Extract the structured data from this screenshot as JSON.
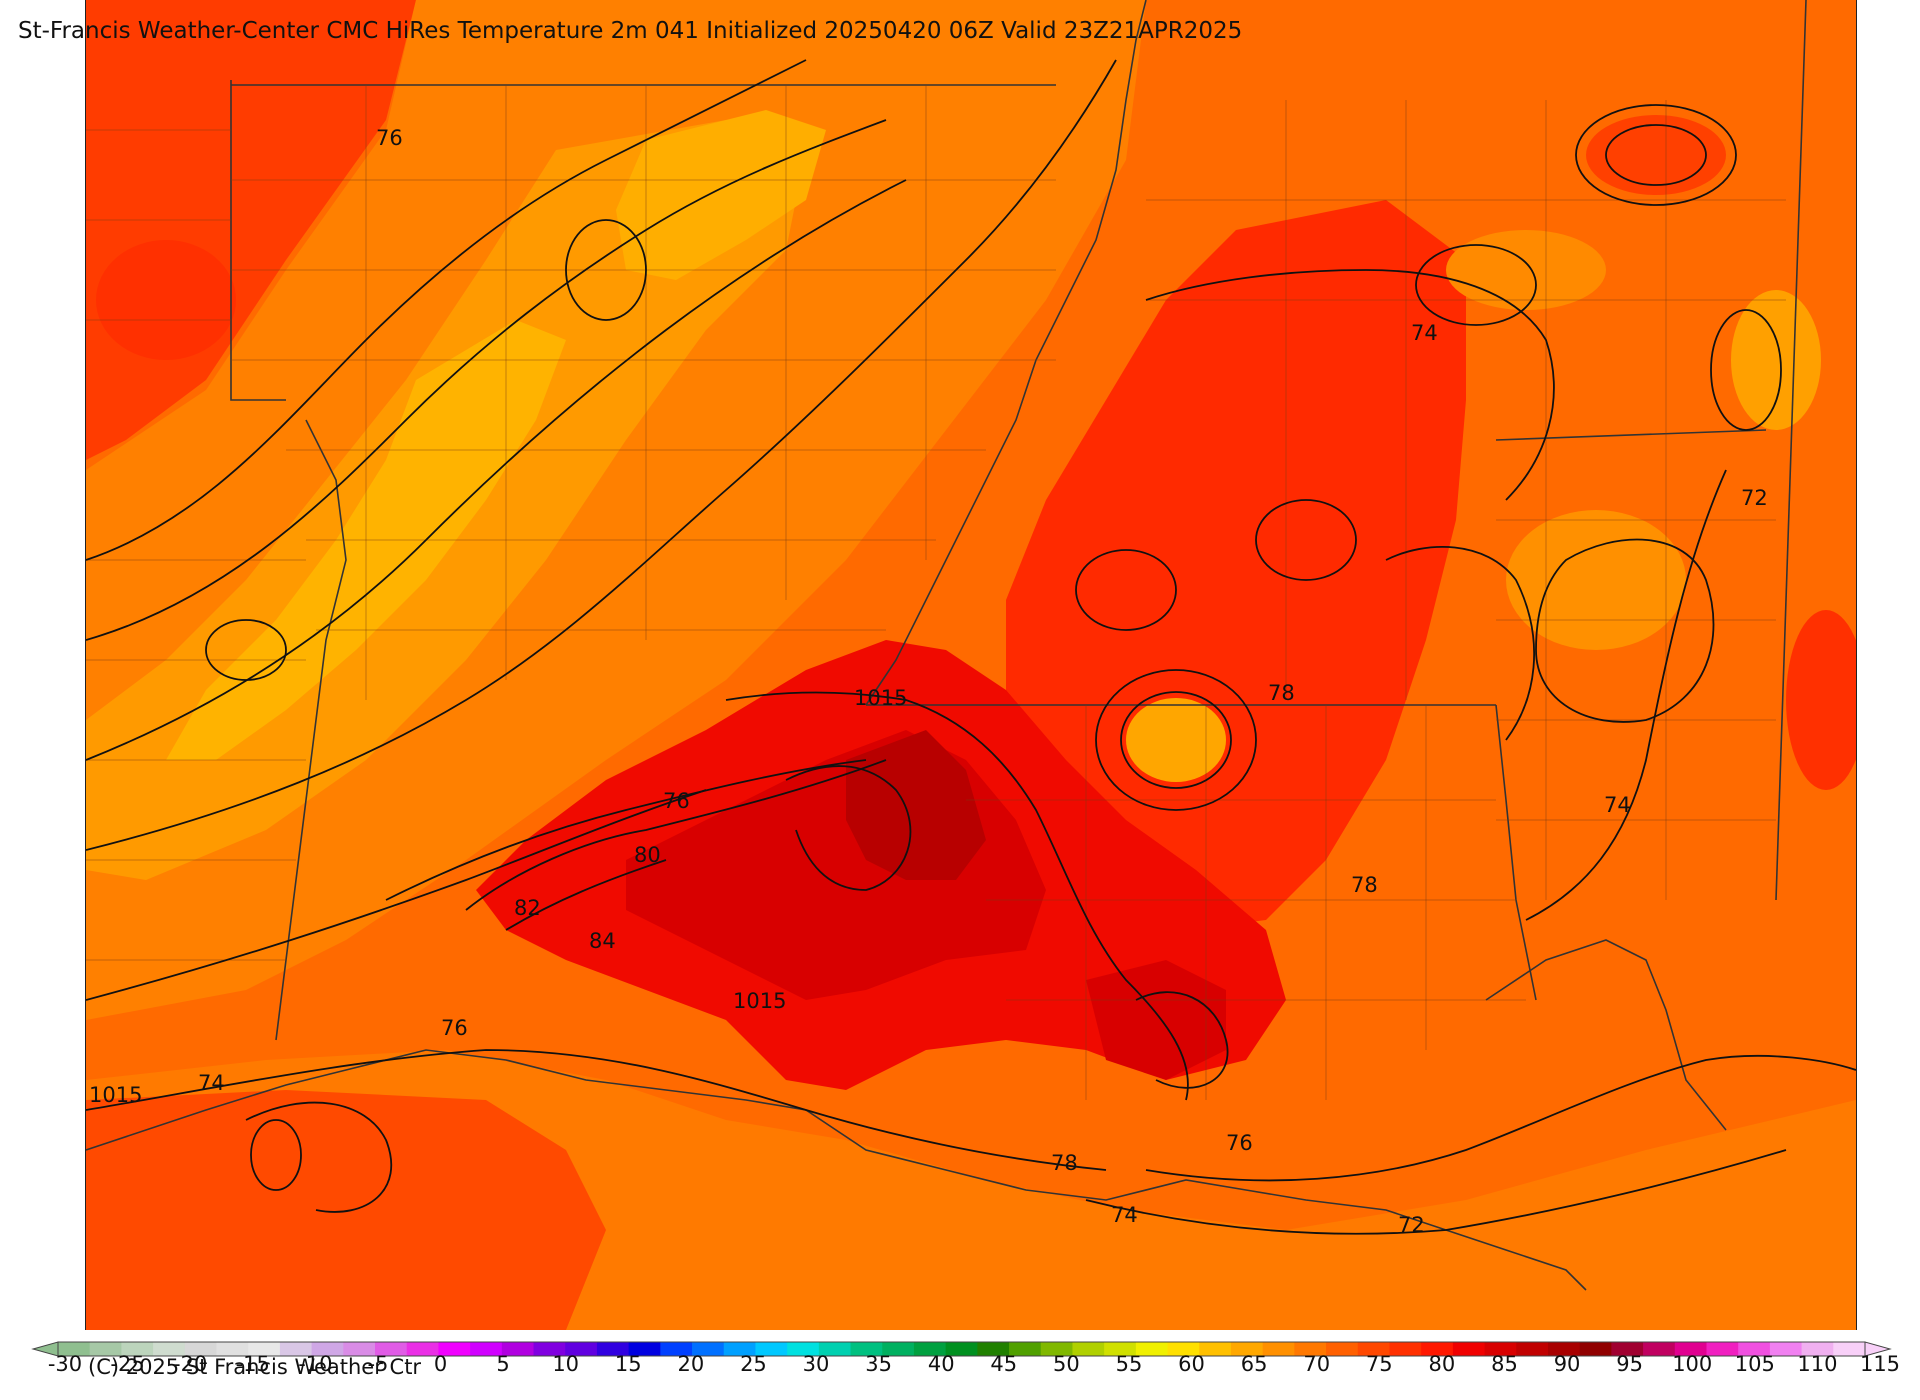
{
  "header": {
    "title": "St-Francis Weather-Center CMC HiRes Temperature 2m  041 Initialized 20250420 06Z Valid 23Z21APR2025"
  },
  "footer": {
    "copyright": "(C) 2025 St Francis Weather Ctr"
  },
  "colorbar": {
    "ticks": [
      "-30",
      "-25",
      "-20",
      "-15",
      "-10",
      "-5",
      "0",
      "5",
      "10",
      "15",
      "20",
      "25",
      "30",
      "35",
      "40",
      "45",
      "50",
      "55",
      "60",
      "65",
      "70",
      "75",
      "80",
      "85",
      "90",
      "95",
      "100",
      "105",
      "110",
      "115"
    ],
    "colors": [
      "#8fbf8f",
      "#a6c8a6",
      "#bcd4bc",
      "#cfdccf",
      "#d7d7d7",
      "#e0e0e0",
      "#e8e8e8",
      "#d9c7e6",
      "#cfa7e6",
      "#d98ce6",
      "#e05ce6",
      "#ea2fe6",
      "#f000ff",
      "#d000ff",
      "#b000e0",
      "#8000e0",
      "#6000e0",
      "#3000e0",
      "#0000e0",
      "#0040ff",
      "#0070ff",
      "#00a0ff",
      "#00c8ff",
      "#00e0e0",
      "#00d0b0",
      "#00c080",
      "#00b060",
      "#00a040",
      "#009020",
      "#208000",
      "#50a000",
      "#80b800",
      "#b0d000",
      "#d0e000",
      "#f0f000",
      "#ffe000",
      "#ffc000",
      "#ffa800",
      "#ff9000",
      "#ff7800",
      "#ff6000",
      "#ff4800",
      "#ff3000",
      "#ff1800",
      "#f00000",
      "#d80000",
      "#c00000",
      "#a80000",
      "#900000",
      "#a00030",
      "#c00060",
      "#e00090",
      "#f020c0",
      "#f050e0",
      "#f080f0",
      "#f0b0f0",
      "#f8d0f8"
    ]
  },
  "contour_labels": [
    {
      "text": "76"
    },
    {
      "text": "74"
    },
    {
      "text": "72"
    },
    {
      "text": "78"
    },
    {
      "text": "1015"
    },
    {
      "text": "76"
    },
    {
      "text": "80"
    },
    {
      "text": "82"
    },
    {
      "text": "84"
    },
    {
      "text": "1015"
    },
    {
      "text": "74"
    },
    {
      "text": "78"
    },
    {
      "text": "76"
    },
    {
      "text": "1015"
    },
    {
      "text": "74"
    },
    {
      "text": "76"
    },
    {
      "text": "78"
    },
    {
      "text": "74"
    },
    {
      "text": "72"
    }
  ]
}
